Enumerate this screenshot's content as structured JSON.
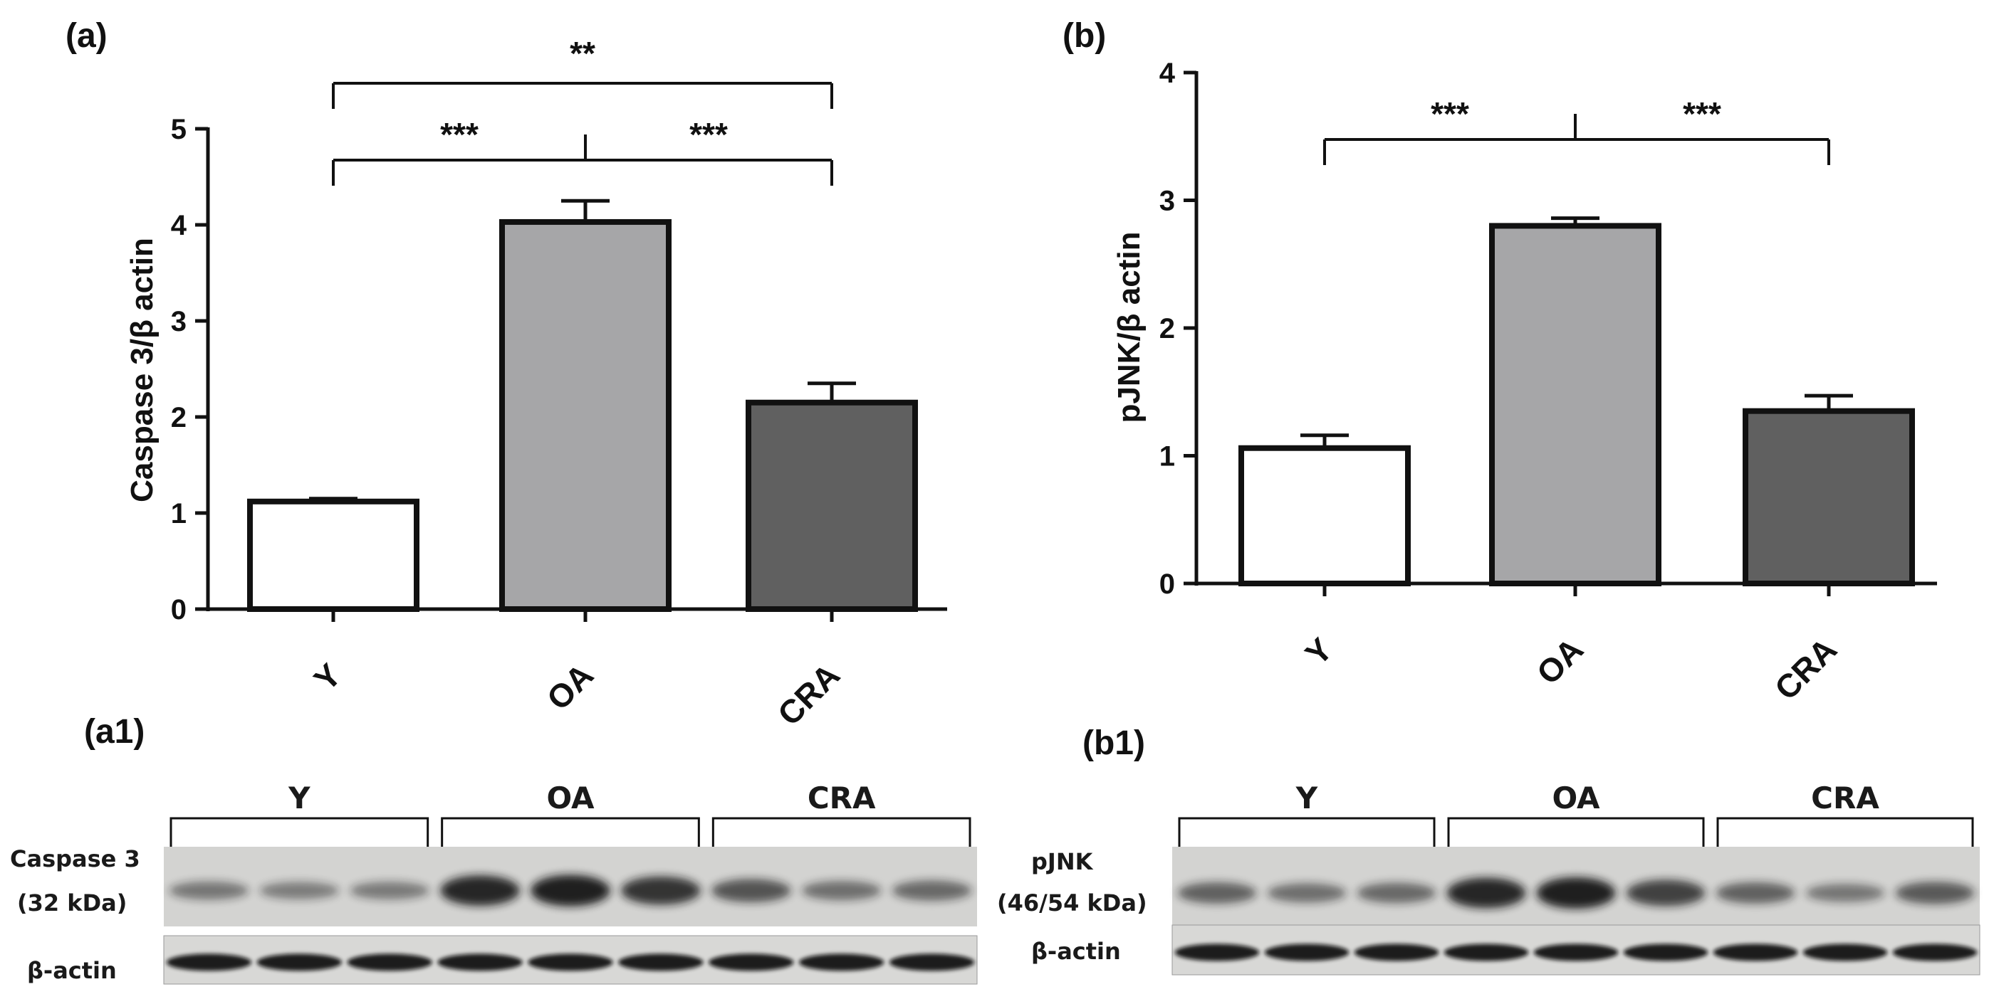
{
  "panels": {
    "a": "(a)",
    "b": "(b)",
    "a1": "(a1)",
    "b1": "(b1)"
  },
  "chart_data": [
    {
      "type": "bar",
      "panel": "(a)",
      "categories": [
        "Y",
        "OA",
        "CRA"
      ],
      "values": [
        1.12,
        4.03,
        2.15
      ],
      "errors": [
        0.03,
        0.22,
        0.2
      ],
      "colors": [
        "#ffffff",
        "#a6a6a8",
        "#606060"
      ],
      "ylabel": "Caspase 3/β actin",
      "ylim": [
        0,
        5
      ],
      "yticks": [
        "0",
        "1",
        "2",
        "3",
        "4",
        "5"
      ],
      "significance": [
        {
          "between": [
            "Y",
            "OA",
            "CRA"
          ],
          "label": "***",
          "label2": "***"
        },
        {
          "between": [
            "Y",
            "CRA"
          ],
          "label": "**"
        }
      ]
    },
    {
      "type": "bar",
      "panel": "(b)",
      "categories": [
        "Y",
        "OA",
        "CRA"
      ],
      "values": [
        1.06,
        2.8,
        1.35
      ],
      "errors": [
        0.1,
        0.06,
        0.12
      ],
      "colors": [
        "#ffffff",
        "#a6a6a8",
        "#606060"
      ],
      "ylabel": "pJNK/β actin",
      "ylim": [
        0,
        4
      ],
      "yticks": [
        "0",
        "1",
        "2",
        "3",
        "4"
      ],
      "significance": [
        {
          "between": [
            "Y",
            "OA",
            "CRA"
          ],
          "label": "***",
          "label2": "***"
        }
      ]
    }
  ],
  "blots": {
    "a1": {
      "groups": [
        "Y",
        "OA",
        "CRA"
      ],
      "protein_line1": "Caspase 3",
      "protein_line2": "(32 kDa)",
      "loading": "β-actin",
      "band_intensity": [
        0.35,
        0.3,
        0.32,
        0.95,
        1.0,
        0.85,
        0.6,
        0.4,
        0.45
      ]
    },
    "b1": {
      "groups": [
        "Y",
        "OA",
        "CRA"
      ],
      "protein_line1": "pJNK",
      "protein_line2": "(46/54 kDa)",
      "loading": "β-actin",
      "band_intensity": [
        0.5,
        0.4,
        0.45,
        0.95,
        1.0,
        0.75,
        0.5,
        0.35,
        0.55
      ]
    }
  }
}
